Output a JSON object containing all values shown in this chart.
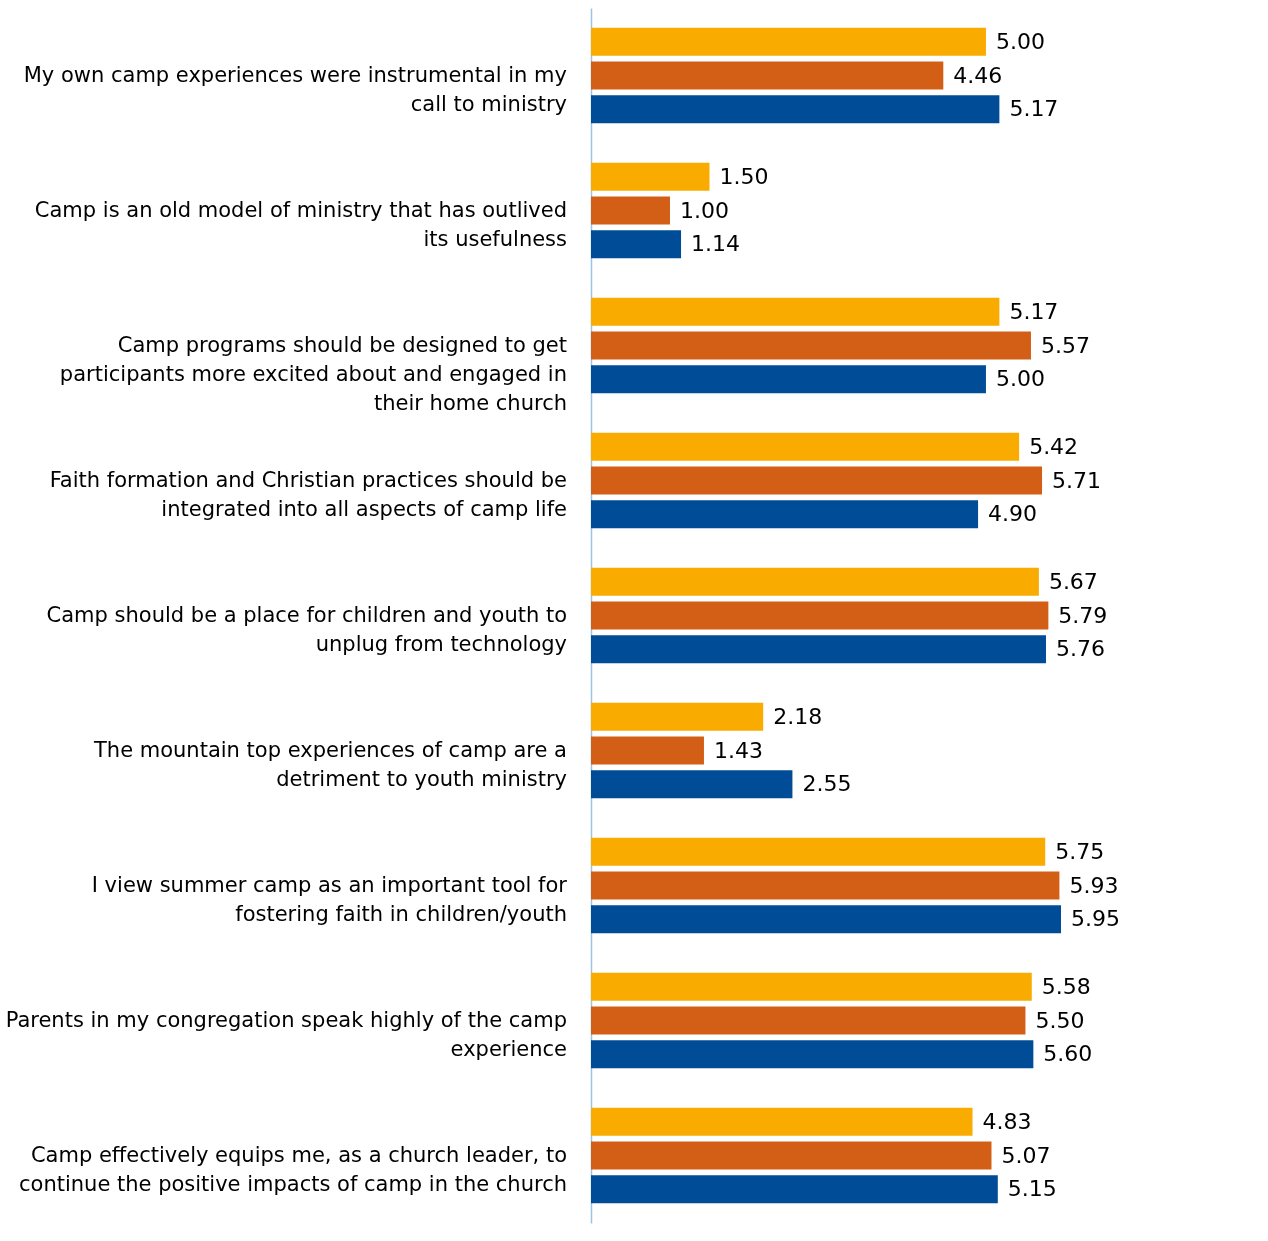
{
  "chart_data": {
    "type": "bar",
    "orientation": "horizontal",
    "categories": [
      "My own camp experiences were instrumental in my call to ministry",
      "Camp is an old model of ministry that has outlived its usefulness",
      "Camp programs should be designed to get participants more excited about and engaged in their home church",
      "Faith formation and Christian practices should be integrated into all aspects of camp life",
      "Camp should be a place for children and youth to unplug from technology",
      "The mountain top experiences of camp are a detriment to youth ministry",
      "I view summer camp as an important tool for fostering faith in children/youth",
      "Parents in my congregation speak highly of the camp experience",
      "Camp effectively equips me, as a church leader, to continue the positive impacts of camp in the church"
    ],
    "series": [
      {
        "color": "#f9ab00",
        "values": [
          5.0,
          1.5,
          5.17,
          5.42,
          5.67,
          2.18,
          5.75,
          5.58,
          4.83
        ],
        "value_labels": [
          "5.00",
          "1.50",
          "5.17",
          "5.42",
          "5.67",
          "2.18",
          "5.75",
          "5.58",
          "4.83"
        ]
      },
      {
        "color": "#d35f16",
        "values": [
          4.46,
          1.0,
          5.57,
          5.71,
          5.79,
          1.43,
          5.93,
          5.5,
          5.07
        ],
        "value_labels": [
          "4.46",
          "1.00",
          "5.57",
          "5.71",
          "5.79",
          "1.43",
          "5.93",
          "5.50",
          "5.07"
        ]
      },
      {
        "color": "#004c97",
        "values": [
          5.17,
          1.14,
          5.0,
          4.9,
          5.76,
          2.55,
          5.95,
          5.6,
          5.15
        ],
        "value_labels": [
          "5.17",
          "1.14",
          "5.00",
          "4.90",
          "5.76",
          "2.55",
          "5.95",
          "5.60",
          "5.15"
        ]
      }
    ],
    "tick_labels": "y"
  }
}
